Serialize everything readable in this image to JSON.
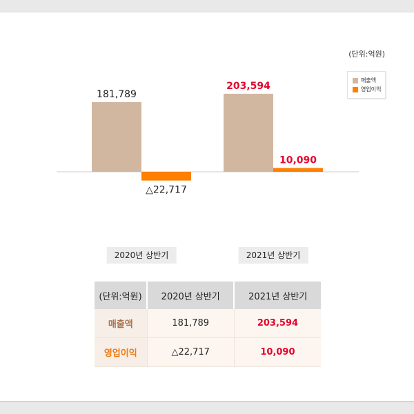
{
  "chart_data": {
    "type": "bar",
    "unit": "(단위:억원)",
    "categories": [
      "2020년 상반기",
      "2021년 상반기"
    ],
    "series": [
      {
        "name": "매출액",
        "color": "#d2b7a0",
        "values": [
          181789,
          203594
        ],
        "labels": [
          "181,789",
          "203,594"
        ],
        "label_colors": [
          "#222222",
          "#e3062e"
        ]
      },
      {
        "name": "영업이익",
        "color": "#ff7f00",
        "values": [
          -22717,
          10090
        ],
        "labels": [
          "△22,717",
          "10,090"
        ],
        "label_colors": [
          "#222222",
          "#e3062e"
        ]
      }
    ],
    "legend_position": "top-right"
  },
  "table": {
    "headers": [
      "(단위:억원)",
      "2020년 상반기",
      "2021년 상반기"
    ],
    "rows": [
      {
        "label": "매출액",
        "values": [
          "181,789",
          "203,594"
        ]
      },
      {
        "label": "영업이익",
        "values": [
          "△22,717",
          "10,090"
        ]
      }
    ]
  }
}
